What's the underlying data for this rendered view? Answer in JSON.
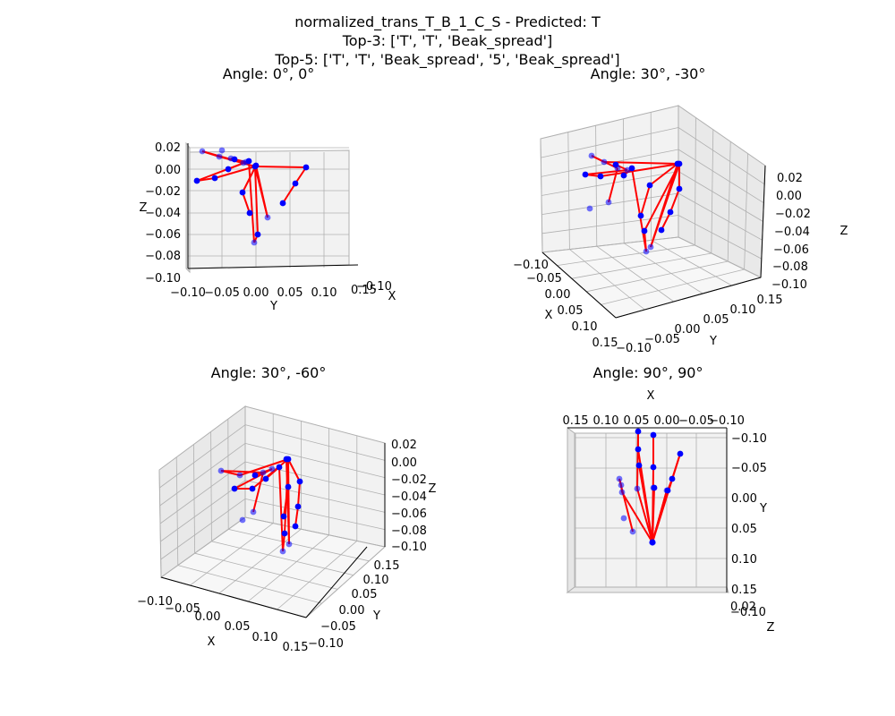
{
  "figure": {
    "title_lines": [
      "normalized_trans_T_B_1_C_S - Predicted: T",
      "Top-3: ['T', 'T', 'Beak_spread']",
      "Top-5: ['T', 'T', 'Beak_spread', '5', 'Beak_spread']"
    ]
  },
  "colors": {
    "joint": "#0000ff",
    "bone": "#ff0000",
    "pane": "#f2f2f2",
    "grid": "#b0b0b0"
  },
  "chart_data": [
    {
      "type": "scatter",
      "title": "Angle: 0°, 0°",
      "view": "elev 0, azim 0",
      "xlabel": "X",
      "ylabel": "Y",
      "zlabel": "Z",
      "y_ticks": [
        "−0.10",
        "−0.05",
        "0.00",
        "0.05",
        "0.10"
      ],
      "z_ticks": [
        "0.02",
        "0.00",
        "−0.02",
        "−0.04",
        "−0.06",
        "−0.08",
        "−0.10"
      ],
      "x_ticks": [
        "−0.10",
        "0.15"
      ],
      "series": [
        {
          "y": [
            -0.08,
            -0.06,
            -0.045,
            -0.035,
            -0.05,
            -0.065,
            -0.09,
            -0.075,
            -0.04,
            -0.02,
            -0.01,
            0.0,
            -0.01,
            -0.005,
            -0.015,
            0.0,
            0.0,
            0.03,
            0.06,
            0.08,
            0.0
          ],
          "z": [
            0.015,
            0.005,
            0.013,
            0.003,
            -0.01,
            -0.012,
            -0.012,
            -0.01,
            0.002,
            0.003,
            -0.003,
            -0.005,
            0.004,
            -0.02,
            -0.04,
            -0.06,
            -0.07,
            -0.055,
            -0.038,
            -0.015,
            0.0
          ]
        }
      ]
    },
    {
      "type": "scatter",
      "title": "Angle: 30°, -30°",
      "view": "elev 30, azim -30",
      "xlabel": "X",
      "ylabel": "Y",
      "zlabel": "Z",
      "x_ticks": [
        "−0.10",
        "−0.05",
        "0.00",
        "0.05",
        "0.10",
        "0.15"
      ],
      "y_ticks": [
        "−0.10",
        "−0.05",
        "0.00",
        "0.05",
        "0.10",
        "0.15"
      ],
      "z_ticks": [
        "0.02",
        "0.00",
        "−0.02",
        "−0.04",
        "−0.06",
        "−0.08",
        "−0.10"
      ]
    },
    {
      "type": "scatter",
      "title": "Angle: 30°, -60°",
      "view": "elev 30, azim -60",
      "xlabel": "X",
      "ylabel": "Y",
      "zlabel": "Z",
      "x_ticks": [
        "−0.10",
        "−0.05",
        "0.00",
        "0.05",
        "0.10",
        "0.15"
      ],
      "y_ticks": [
        "−0.10",
        "−0.05",
        "0.00",
        "0.05",
        "0.10",
        "0.15"
      ],
      "z_ticks": [
        "0.02",
        "0.00",
        "−0.02",
        "−0.04",
        "−0.06",
        "−0.08",
        "−0.10"
      ]
    },
    {
      "type": "scatter",
      "title": "Angle: 90°, 90°",
      "view": "elev 90, azim 90",
      "xlabel": "X",
      "ylabel": "Y",
      "zlabel": "Z",
      "x_ticks": [
        "0.15",
        "0.10",
        "0.05",
        "0.00",
        "−0.05",
        "−0.10"
      ],
      "y_ticks": [
        "−0.10",
        "−0.05",
        "0.00",
        "0.05",
        "0.10",
        "0.15"
      ],
      "z_ticks": [
        "0.02",
        "−0.10"
      ]
    }
  ]
}
